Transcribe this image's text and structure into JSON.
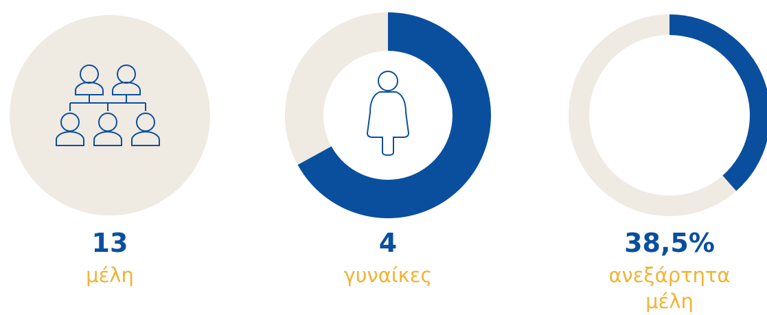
{
  "items": [
    {
      "value": 13,
      "label": "μέλη"
    },
    {
      "value": 4,
      "label": "γυναίκες",
      "share": 67
    },
    {
      "value": 38.5,
      "value_label": "38,5%",
      "label": "ανεξάρτητα μέλη",
      "share": 38.5
    }
  ]
}
